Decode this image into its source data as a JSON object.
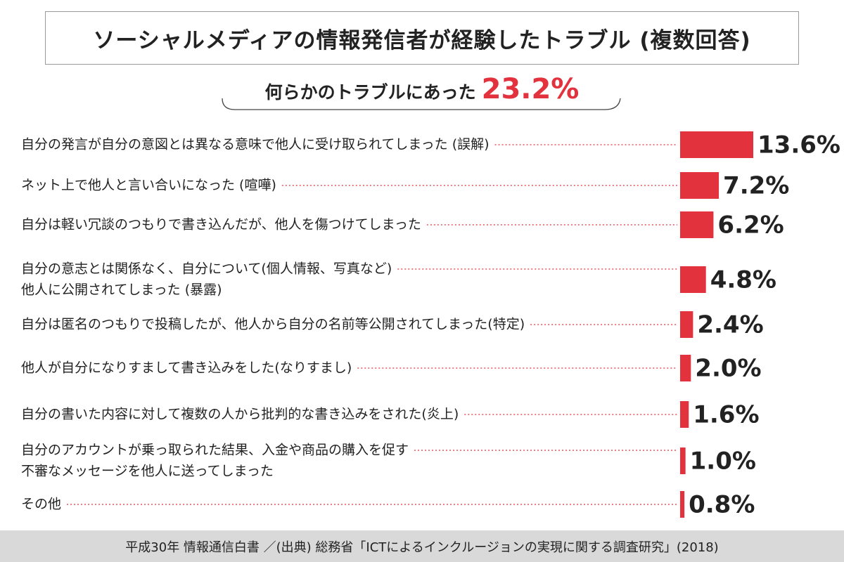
{
  "title": "ソーシャルメディアの情報発信者が経験したトラブル (複数回答)",
  "subtitle": {
    "label": "何らかのトラブルにあった",
    "value": "23.2%"
  },
  "source": "平成30年  情報通信白書 ／(出典) 総務省「ICTによるインクルージョンの実現に関する調査研究」(2018)",
  "colors": {
    "bar": "#e2323e",
    "accent": "#e2323e",
    "footer_bg": "#d9d9d9"
  },
  "chart_data": {
    "type": "bar",
    "orientation": "horizontal",
    "unit": "%",
    "categories": [
      [
        "自分の発言が自分の意図とは異なる意味で他人に受け取られてしまった (誤解)"
      ],
      [
        "ネット上で他人と言い合いになった (喧嘩)"
      ],
      [
        "自分は軽い冗談のつもりで書き込んだが、他人を傷つけてしまった"
      ],
      [
        "自分の意志とは関係なく、自分について(個人情報、写真など)",
        "他人に公開されてしまった (暴露)"
      ],
      [
        "自分は匿名のつもりで投稿したが、他人から自分の名前等公開されてしまった(特定)"
      ],
      [
        "他人が自分になりすまして書き込みをした(なりすまし)"
      ],
      [
        "自分の書いた内容に対して複数の人から批判的な書き込みをされた(炎上)"
      ],
      [
        "自分のアカウントが乗っ取られた結果、入金や商品の購入を促す",
        "不審なメッセージを他人に送ってしまった"
      ],
      [
        "その他"
      ]
    ],
    "values": [
      13.6,
      7.2,
      6.2,
      4.8,
      2.4,
      2.0,
      1.6,
      1.0,
      0.8
    ],
    "value_labels": [
      "13.6%",
      "7.2%",
      "6.2%",
      "4.8%",
      "2.4%",
      "2.0%",
      "1.6%",
      "1.0%",
      "0.8%"
    ],
    "xlim": [
      0,
      13.6
    ]
  }
}
